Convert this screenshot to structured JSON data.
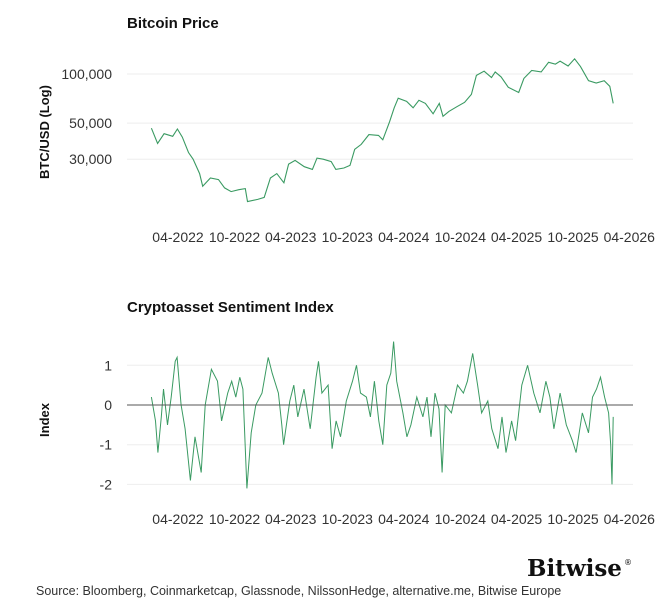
{
  "colors": {
    "line": "#3a9a62",
    "grid": "#eeeeee",
    "zero_line": "#555555"
  },
  "logo": {
    "text": "Bitwise",
    "mark": "®"
  },
  "source": "Source: Bloomberg, Coinmarketcap, Glassnode, NilssonHedge, alternative.me, Bitwise Europe",
  "chart_data": [
    {
      "type": "line",
      "title": "Bitcoin Price",
      "xlabel": "",
      "ylabel": "BTC/USD (Log)",
      "yscale": "log",
      "ylim": [
        15000,
        130000
      ],
      "yticks": [
        100000,
        50000,
        30000
      ],
      "ytick_labels": [
        "100,000",
        "50,000",
        "30,000"
      ],
      "xtick_labels": [
        "04-2022",
        "10-2022",
        "04-2023",
        "10-2023",
        "04-2024",
        "10-2024",
        "04-2025",
        "10-2025",
        "04-2026"
      ],
      "xticks": [
        "2022-04-01",
        "2022-10-01",
        "2023-04-01",
        "2023-10-01",
        "2024-04-01",
        "2024-10-01",
        "2025-04-01",
        "2025-10-01",
        "2026-04-01"
      ],
      "grid": true,
      "series": [
        {
          "x": [
            "2022-01-05",
            "2022-01-25",
            "2022-02-15",
            "2022-03-15",
            "2022-03-30",
            "2022-04-15",
            "2022-05-05",
            "2022-05-20",
            "2022-06-10",
            "2022-06-20",
            "2022-07-15",
            "2022-08-10",
            "2022-08-30",
            "2022-09-20",
            "2022-10-15",
            "2022-11-05",
            "2022-11-12",
            "2022-12-15",
            "2023-01-05",
            "2023-01-25",
            "2023-02-15",
            "2023-03-10",
            "2023-03-25",
            "2023-04-15",
            "2023-05-15",
            "2023-06-10",
            "2023-06-25",
            "2023-07-15",
            "2023-08-10",
            "2023-08-25",
            "2023-09-20",
            "2023-10-10",
            "2023-10-25",
            "2023-11-15",
            "2023-12-10",
            "2024-01-10",
            "2024-01-24",
            "2024-02-15",
            "2024-03-01",
            "2024-03-14",
            "2024-04-10",
            "2024-05-01",
            "2024-05-20",
            "2024-06-10",
            "2024-07-05",
            "2024-07-25",
            "2024-08-06",
            "2024-08-25",
            "2024-09-20",
            "2024-10-15",
            "2024-11-06",
            "2024-11-22",
            "2024-12-17",
            "2025-01-10",
            "2025-01-22",
            "2025-02-10",
            "2025-03-05",
            "2025-04-08",
            "2025-04-25",
            "2025-05-20",
            "2025-06-20",
            "2025-07-14",
            "2025-08-05",
            "2025-08-20",
            "2025-09-15",
            "2025-10-06",
            "2025-10-25",
            "2025-11-20",
            "2025-12-15",
            "2026-01-10",
            "2026-01-28",
            "2026-02-08"
          ],
          "y": [
            46500,
            37500,
            43000,
            41500,
            46000,
            41000,
            33000,
            30000,
            24500,
            20500,
            23000,
            22500,
            20000,
            19000,
            19500,
            19800,
            16500,
            17000,
            17500,
            23000,
            24500,
            21500,
            28000,
            29500,
            27000,
            26000,
            30500,
            30000,
            29000,
            26000,
            26500,
            27500,
            34500,
            37000,
            42500,
            42000,
            39500,
            51000,
            62000,
            71000,
            68000,
            62000,
            69000,
            66000,
            57000,
            66000,
            55000,
            59000,
            63000,
            67000,
            75000,
            98000,
            104000,
            95000,
            103000,
            96000,
            83000,
            77000,
            94000,
            105000,
            103000,
            118000,
            115000,
            120000,
            112000,
            124000,
            111000,
            91000,
            88000,
            91000,
            84000,
            66000
          ]
        }
      ]
    },
    {
      "type": "line",
      "title": "Cryptoasset Sentiment Index",
      "xlabel": "",
      "ylabel": "Index",
      "ylim": [
        -2.1,
        1.6
      ],
      "yticks": [
        1,
        0,
        -1,
        -2
      ],
      "ytick_labels": [
        "1",
        "0",
        "-1",
        "-2"
      ],
      "xtick_labels": [
        "04-2022",
        "10-2022",
        "04-2023",
        "10-2023",
        "04-2024",
        "10-2024",
        "04-2025",
        "10-2025",
        "04-2026"
      ],
      "xticks": [
        "2022-04-01",
        "2022-10-01",
        "2023-04-01",
        "2023-10-01",
        "2024-04-01",
        "2024-10-01",
        "2025-04-01",
        "2025-10-01",
        "2026-04-01"
      ],
      "grid": true,
      "zero_line": true,
      "series": [
        {
          "x": [
            "2022-01-05",
            "2022-01-18",
            "2022-01-26",
            "2022-02-06",
            "2022-02-13",
            "2022-02-26",
            "2022-03-10",
            "2022-03-23",
            "2022-03-29",
            "2022-04-11",
            "2022-04-24",
            "2022-05-11",
            "2022-05-26",
            "2022-06-15",
            "2022-06-28",
            "2022-07-18",
            "2022-08-07",
            "2022-08-20",
            "2022-09-09",
            "2022-09-22",
            "2022-10-05",
            "2022-10-18",
            "2022-10-28",
            "2022-11-10",
            "2022-11-24",
            "2022-12-09",
            "2022-12-29",
            "2023-01-18",
            "2023-01-31",
            "2023-02-20",
            "2023-03-03",
            "2023-03-09",
            "2023-03-29",
            "2023-04-11",
            "2023-04-24",
            "2023-05-14",
            "2023-06-03",
            "2023-06-22",
            "2023-06-30",
            "2023-07-11",
            "2023-07-31",
            "2023-08-13",
            "2023-08-26",
            "2023-09-09",
            "2023-09-28",
            "2023-10-18",
            "2023-10-31",
            "2023-11-13",
            "2023-12-02",
            "2023-12-15",
            "2023-12-28",
            "2024-01-11",
            "2024-01-24",
            "2024-02-06",
            "2024-02-19",
            "2024-02-28",
            "2024-03-09",
            "2024-03-29",
            "2024-04-11",
            "2024-04-24",
            "2024-05-13",
            "2024-06-02",
            "2024-06-15",
            "2024-06-28",
            "2024-07-11",
            "2024-07-24",
            "2024-08-03",
            "2024-08-13",
            "2024-09-02",
            "2024-09-22",
            "2024-10-11",
            "2024-10-24",
            "2024-11-10",
            "2024-11-26",
            "2024-12-09",
            "2024-12-29",
            "2025-01-11",
            "2025-01-31",
            "2025-02-13",
            "2025-02-26",
            "2025-03-16",
            "2025-03-29",
            "2025-04-18",
            "2025-05-07",
            "2025-05-27",
            "2025-06-16",
            "2025-07-05",
            "2025-07-18",
            "2025-07-31",
            "2025-08-20",
            "2025-09-09",
            "2025-09-29",
            "2025-10-11",
            "2025-10-31",
            "2025-11-20",
            "2025-12-03",
            "2025-12-16",
            "2025-12-29",
            "2026-01-11",
            "2026-01-24",
            "2026-01-31",
            "2026-02-04",
            "2026-02-08"
          ],
          "y": [
            0.2,
            -0.4,
            -1.2,
            -0.3,
            0.4,
            -0.5,
            0.2,
            1.1,
            1.2,
            0.0,
            -0.6,
            -1.9,
            -0.8,
            -1.7,
            0.0,
            0.9,
            0.6,
            -0.4,
            0.3,
            0.6,
            0.2,
            0.7,
            0.4,
            -2.1,
            -0.7,
            0.0,
            0.3,
            1.2,
            0.8,
            0.3,
            -0.5,
            -1.0,
            0.1,
            0.5,
            -0.3,
            0.4,
            -0.6,
            0.7,
            1.1,
            0.3,
            0.5,
            -1.1,
            -0.4,
            -0.8,
            0.1,
            0.6,
            1.0,
            0.3,
            0.2,
            -0.3,
            0.6,
            -0.4,
            -1.0,
            0.5,
            0.8,
            1.6,
            0.6,
            -0.2,
            -0.8,
            -0.5,
            0.2,
            -0.3,
            0.2,
            -0.8,
            0.3,
            -0.1,
            -1.7,
            0.0,
            -0.2,
            0.5,
            0.3,
            0.6,
            1.3,
            0.5,
            -0.2,
            0.1,
            -0.6,
            -1.1,
            -0.3,
            -1.2,
            -0.4,
            -0.9,
            0.5,
            1.0,
            0.3,
            -0.2,
            0.6,
            0.2,
            -0.6,
            0.3,
            -0.5,
            -0.9,
            -1.2,
            -0.2,
            -0.7,
            0.2,
            0.4,
            0.7,
            0.2,
            -0.2,
            -1.0,
            -2.0,
            -0.3
          ]
        }
      ]
    }
  ]
}
